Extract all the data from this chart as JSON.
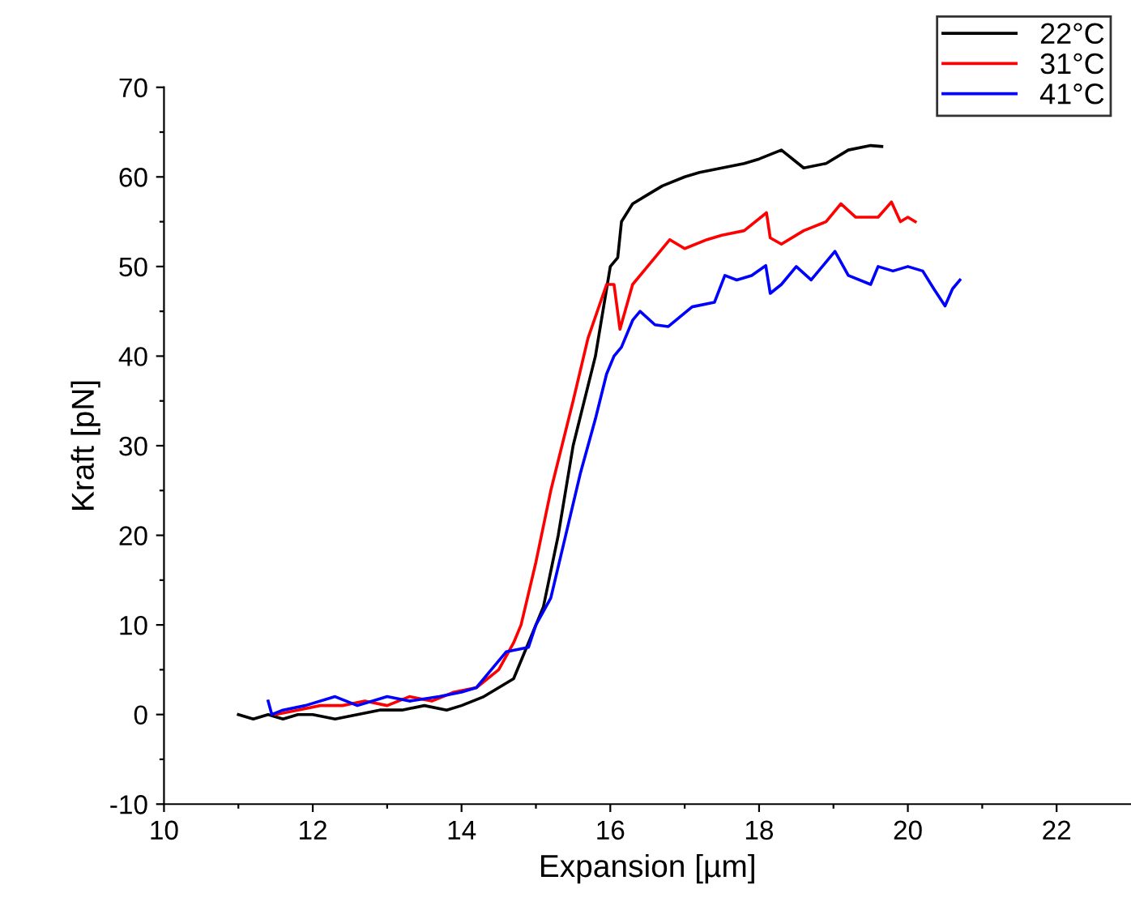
{
  "chart_data": {
    "type": "line",
    "xlabel": "Expansion [µm]",
    "ylabel": "Kraft [pN]",
    "xlim": [
      10,
      23
    ],
    "ylim": [
      -10,
      70
    ],
    "xticks": [
      10,
      {
        "value": 11,
        "label": null
      },
      12,
      {
        "value": 13,
        "label": null
      },
      14,
      {
        "value": 15,
        "label": null
      },
      16,
      {
        "value": 17,
        "label": null
      },
      18,
      {
        "value": 19,
        "label": null
      },
      20,
      {
        "value": 21,
        "label": null
      },
      22
    ],
    "yticks": [
      -10,
      {
        "value": -5,
        "label": null
      },
      0,
      {
        "value": 5,
        "label": null
      },
      10,
      {
        "value": 15,
        "label": null
      },
      20,
      {
        "value": 25,
        "label": null
      },
      30,
      {
        "value": 35,
        "label": null
      },
      40,
      {
        "value": 45,
        "label": null
      },
      50,
      {
        "value": 55,
        "label": null
      },
      60,
      {
        "value": 65,
        "label": null
      },
      70
    ],
    "grid": false,
    "legend": "top right",
    "marker": "none",
    "line_style": "solid",
    "series": [
      {
        "name": "22°C",
        "color": "#000000",
        "x": [
          11.0,
          11.2,
          11.4,
          11.6,
          11.8,
          12.0,
          12.3,
          12.6,
          12.9,
          13.2,
          13.5,
          13.8,
          14.0,
          14.3,
          14.5,
          14.7,
          14.9,
          15.1,
          15.3,
          15.5,
          15.8,
          16.0,
          16.1,
          16.15,
          16.3,
          16.5,
          16.7,
          17.0,
          17.2,
          17.5,
          17.8,
          18.0,
          18.3,
          18.6,
          18.9,
          19.2,
          19.5,
          19.65
        ],
        "values": [
          0,
          -0.5,
          0,
          -0.5,
          0,
          0,
          -0.5,
          0,
          0.5,
          0.5,
          1,
          0.5,
          1,
          2,
          3,
          4,
          8,
          12,
          20,
          30,
          40,
          50,
          51,
          55,
          57,
          58,
          59,
          60,
          60.5,
          61,
          61.5,
          62,
          63,
          61,
          61.5,
          63,
          63.5,
          63.4
        ]
      },
      {
        "name": "31°C",
        "color": "#ff0000",
        "x": [
          11.5,
          11.8,
          12.1,
          12.4,
          12.7,
          13.0,
          13.3,
          13.6,
          13.9,
          14.2,
          14.5,
          14.7,
          14.8,
          15.0,
          15.2,
          15.5,
          15.7,
          15.95,
          16.05,
          16.13,
          16.3,
          16.5,
          16.8,
          17.0,
          17.3,
          17.5,
          17.8,
          18.1,
          18.15,
          18.3,
          18.6,
          18.9,
          19.1,
          19.3,
          19.6,
          19.78,
          19.9,
          20.0,
          20.1
        ],
        "values": [
          0,
          0.5,
          1,
          1,
          1.5,
          1,
          2,
          1.5,
          2.5,
          3,
          5,
          8,
          10,
          17,
          25,
          35,
          42,
          48,
          48,
          43,
          48,
          50,
          53,
          52,
          53,
          53.5,
          54,
          56,
          53.2,
          52.5,
          54,
          55,
          57,
          55.5,
          55.5,
          57.2,
          55,
          55.5,
          55
        ]
      },
      {
        "name": "41°C",
        "color": "#0000ff",
        "x": [
          11.4,
          11.45,
          11.6,
          11.9,
          12.3,
          12.6,
          13.0,
          13.3,
          13.7,
          14.0,
          14.2,
          14.4,
          14.6,
          14.9,
          15.0,
          15.2,
          15.4,
          15.6,
          15.8,
          15.95,
          16.05,
          16.15,
          16.3,
          16.4,
          16.6,
          16.78,
          17.1,
          17.4,
          17.54,
          17.7,
          17.9,
          18.09,
          18.15,
          18.3,
          18.5,
          18.7,
          18.9,
          19.02,
          19.2,
          19.5,
          19.6,
          19.8,
          20.0,
          20.2,
          20.35,
          20.5,
          20.6,
          20.7
        ],
        "values": [
          1.5,
          0,
          0.5,
          1,
          2,
          1,
          2,
          1.5,
          2,
          2.5,
          3,
          5,
          7,
          7.5,
          10,
          13,
          20,
          27,
          33,
          38,
          40,
          41,
          44,
          45,
          43.5,
          43.3,
          45.5,
          46,
          49,
          48.5,
          49,
          50.1,
          47,
          48,
          50,
          48.5,
          50.5,
          51.7,
          49,
          48,
          50,
          49.5,
          50,
          49.5,
          47.5,
          45.6,
          47.5,
          48.5
        ]
      }
    ]
  }
}
